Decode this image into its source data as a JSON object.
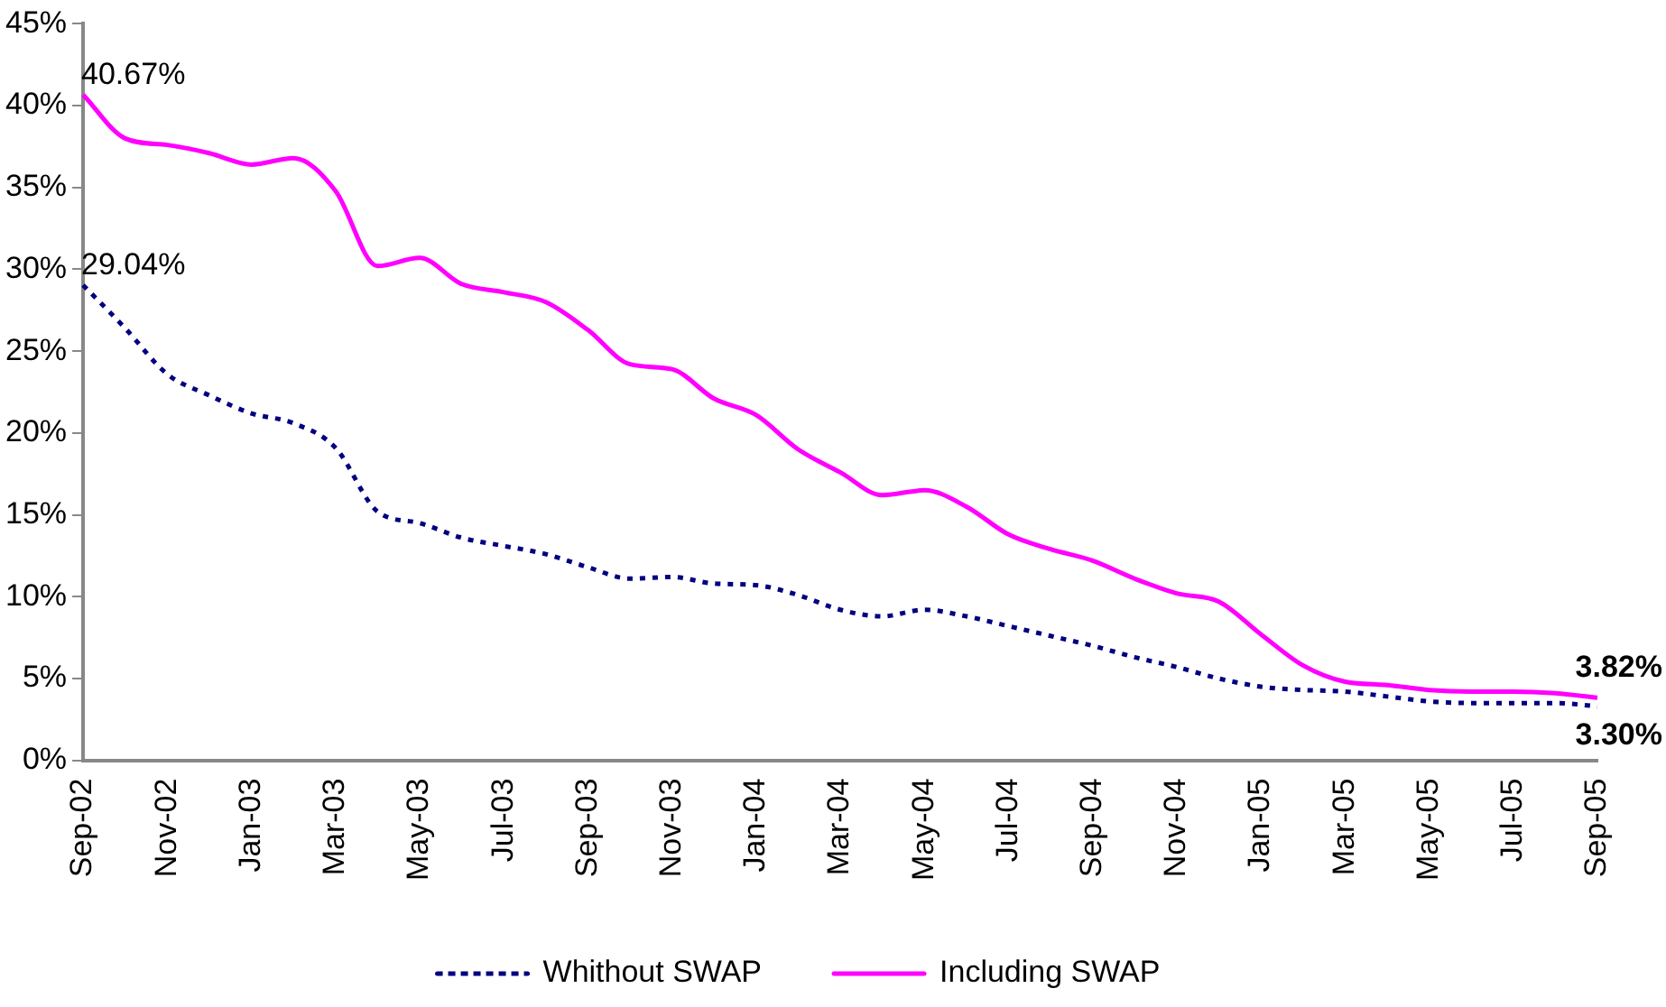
{
  "chart_data": {
    "type": "line",
    "categories": [
      "Sep-02",
      null,
      "Nov-02",
      null,
      "Jan-03",
      null,
      "Mar-03",
      null,
      "May-03",
      null,
      "Jul-03",
      null,
      "Sep-03",
      null,
      "Nov-03",
      null,
      "Jan-04",
      null,
      "Mar-04",
      null,
      "May-04",
      null,
      "Jul-04",
      null,
      "Sep-04",
      null,
      "Nov-04",
      null,
      "Jan-05",
      null,
      "Mar-05",
      null,
      "May-05",
      null,
      "Jul-05",
      null,
      "Sep-05"
    ],
    "series": [
      {
        "name": "Whithout SWAP",
        "color": "#000080",
        "line_style": "dotted",
        "values": [
          29.04,
          26.4,
          23.6,
          22.3,
          21.2,
          20.6,
          19.1,
          15.2,
          14.5,
          13.6,
          13.1,
          12.6,
          11.8,
          11.1,
          11.2,
          10.8,
          10.7,
          10.1,
          9.2,
          8.8,
          9.2,
          8.8,
          8.2,
          7.6,
          7.0,
          6.3,
          5.7,
          5.0,
          4.5,
          4.3,
          4.2,
          3.9,
          3.6,
          3.5,
          3.5,
          3.5,
          3.3
        ]
      },
      {
        "name": "Including SWAP",
        "color": "#ff00ff",
        "line_style": "solid",
        "values": [
          40.67,
          38.0,
          37.6,
          37.1,
          36.4,
          36.8,
          34.8,
          30.2,
          30.7,
          29.1,
          28.6,
          28.0,
          26.3,
          24.2,
          23.9,
          22.1,
          21.1,
          19.0,
          17.6,
          16.2,
          16.5,
          15.5,
          13.8,
          12.9,
          12.2,
          11.1,
          10.2,
          9.7,
          7.7,
          5.8,
          4.8,
          4.6,
          4.3,
          4.2,
          4.2,
          4.1,
          3.82
        ]
      }
    ],
    "ylim": [
      0,
      45
    ],
    "yticks": [
      {
        "value": 0,
        "label": "0%"
      },
      {
        "value": 5,
        "label": "5%"
      },
      {
        "value": 10,
        "label": "10%"
      },
      {
        "value": 15,
        "label": "15%"
      },
      {
        "value": 20,
        "label": "20%"
      },
      {
        "value": 25,
        "label": "25%"
      },
      {
        "value": 30,
        "label": "30%"
      },
      {
        "value": 35,
        "label": "35%"
      },
      {
        "value": 40,
        "label": "40%"
      },
      {
        "value": 45,
        "label": "45%"
      }
    ],
    "grid": false,
    "legend": "bottom",
    "marker": "none",
    "annotations": [
      {
        "text": "40.67%",
        "x": "Sep-02",
        "y": 40.67
      },
      {
        "text": "29.04%",
        "x": "Sep-02",
        "y": 29.04
      },
      {
        "text": "3.82%",
        "x": "Sep-05",
        "y": 3.82
      },
      {
        "text": "3.30%",
        "x": "Sep-05",
        "y": 3.3
      }
    ]
  }
}
